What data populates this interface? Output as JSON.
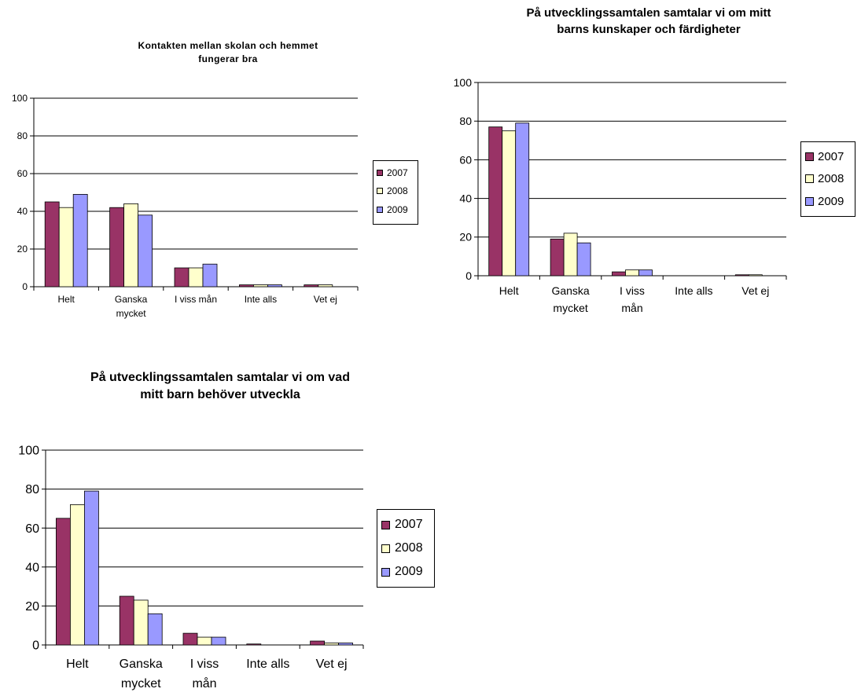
{
  "colors": {
    "s2007": "#993366",
    "s2008": "#ffffcc",
    "s2009": "#9999ff"
  },
  "chart_data": [
    {
      "type": "bar",
      "title_lines": [
        "Kontakten mellan skolan och hemmet",
        "fungerar bra"
      ],
      "categories": [
        [
          "Helt"
        ],
        [
          "Ganska",
          "mycket"
        ],
        [
          "I viss mån"
        ],
        [
          "Inte alls"
        ],
        [
          "Vet ej"
        ]
      ],
      "y_ticks": [
        "0",
        "20",
        "40",
        "60",
        "80",
        "100"
      ],
      "ylim": [
        0,
        100
      ],
      "grid": true,
      "legend_position": "right",
      "series": [
        {
          "name": "2007",
          "values": [
            45,
            42,
            10,
            1,
            1
          ]
        },
        {
          "name": "2008",
          "values": [
            42,
            44,
            10,
            1,
            1
          ]
        },
        {
          "name": "2009",
          "values": [
            49,
            38,
            12,
            1,
            0
          ]
        }
      ]
    },
    {
      "type": "bar",
      "title_lines": [
        "På utvecklingssamtalen samtalar vi om mitt",
        "barns kunskaper och färdigheter"
      ],
      "categories": [
        [
          "Helt"
        ],
        [
          "Ganska",
          "mycket"
        ],
        [
          "I viss",
          "mån"
        ],
        [
          "Inte alls"
        ],
        [
          "Vet ej"
        ]
      ],
      "y_ticks": [
        "0",
        "20",
        "40",
        "60",
        "80",
        "100"
      ],
      "ylim": [
        0,
        100
      ],
      "grid": true,
      "legend_position": "right",
      "series": [
        {
          "name": "2007",
          "values": [
            77,
            19,
            2,
            0,
            0.5
          ]
        },
        {
          "name": "2008",
          "values": [
            75,
            22,
            3,
            0,
            0.5
          ]
        },
        {
          "name": "2009",
          "values": [
            79,
            17,
            3,
            0,
            0
          ]
        }
      ]
    },
    {
      "type": "bar",
      "title_lines": [
        "På utvecklingssamtalen samtalar vi om vad",
        "mitt barn behöver utveckla"
      ],
      "categories": [
        [
          "Helt"
        ],
        [
          "Ganska",
          "mycket"
        ],
        [
          "I viss",
          "mån"
        ],
        [
          "Inte alls"
        ],
        [
          "Vet ej"
        ]
      ],
      "y_ticks": [
        "0",
        "20",
        "40",
        "60",
        "80",
        "100"
      ],
      "ylim": [
        0,
        100
      ],
      "grid": true,
      "legend_position": "right",
      "series": [
        {
          "name": "2007",
          "values": [
            65,
            25,
            6,
            0.5,
            2
          ]
        },
        {
          "name": "2008",
          "values": [
            72,
            23,
            4,
            0,
            1
          ]
        },
        {
          "name": "2009",
          "values": [
            79,
            16,
            4,
            0,
            1
          ]
        }
      ]
    }
  ]
}
